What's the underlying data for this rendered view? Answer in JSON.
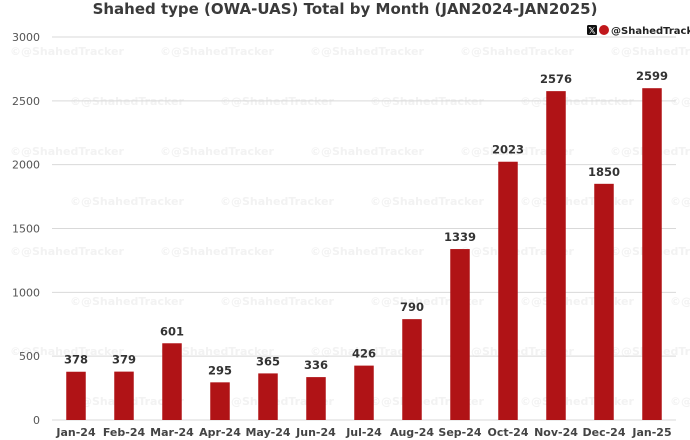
{
  "chart_data": {
    "type": "bar",
    "title": "Shahed type (OWA-UAS) Total by Month (JAN2024-JAN2025)",
    "categories": [
      "Jan-24",
      "Feb-24",
      "Mar-24",
      "Apr-24",
      "May-24",
      "Jun-24",
      "Jul-24",
      "Aug-24",
      "Sep-24",
      "Oct-24",
      "Nov-24",
      "Dec-24",
      "Jan-25"
    ],
    "values": [
      378,
      379,
      601,
      295,
      365,
      336,
      426,
      790,
      1339,
      2023,
      2576,
      1850,
      2599
    ],
    "ylim": [
      0,
      3000
    ],
    "yticks": [
      0,
      500,
      1000,
      1500,
      2000,
      2500,
      3000
    ],
    "xlabel": "",
    "ylabel": "",
    "grid": true,
    "bar_color": "#b01316"
  },
  "branding": {
    "handle": "@ShahedTracker",
    "x_icon": "x-logo-icon",
    "logo_icon": "shahed-tracker-logo-icon",
    "watermark_text": "@ShahedTracker"
  }
}
